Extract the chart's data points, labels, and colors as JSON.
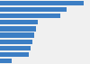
{
  "values": [
    100,
    80,
    72,
    45,
    43,
    41,
    39,
    37,
    35,
    14
  ],
  "bar_color": "#3c7ec4",
  "background_color": "#f0f0f0",
  "plot_bg": "#f0f0f0",
  "xlim": [
    0,
    108
  ],
  "bar_height": 0.72,
  "n_bars": 10
}
